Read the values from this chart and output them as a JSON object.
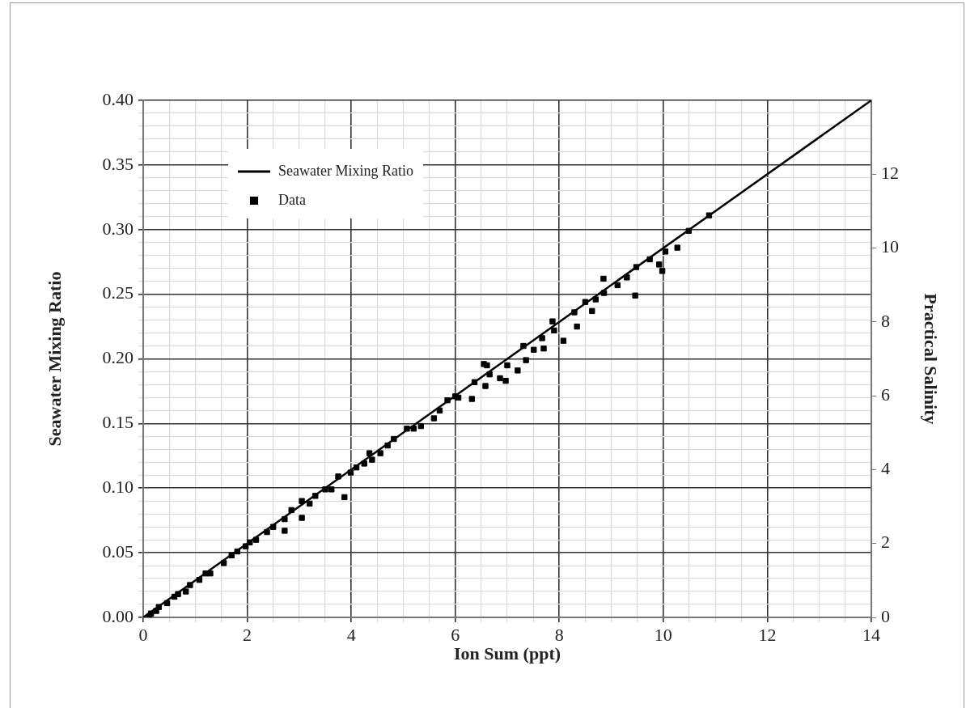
{
  "chart_data": {
    "type": "scatter",
    "xlabel": "Ion Sum (ppt)",
    "ylabel": "Seawater Mixing Ratio",
    "y2label": "Practical Salinity",
    "xlim": [
      0,
      14
    ],
    "ylim": [
      0,
      0.4
    ],
    "y2lim": [
      0,
      14
    ],
    "xticks": [
      0,
      {
        "value": 0.5,
        "label": null
      },
      {
        "value": 1,
        "label": null
      },
      {
        "value": 1.5,
        "label": null
      },
      2,
      {
        "value": 2.5,
        "label": null
      },
      {
        "value": 3,
        "label": null
      },
      {
        "value": 3.5,
        "label": null
      },
      4,
      {
        "value": 4.5,
        "label": null
      },
      {
        "value": 5,
        "label": null
      },
      {
        "value": 5.5,
        "label": null
      },
      6,
      {
        "value": 6.5,
        "label": null
      },
      {
        "value": 7,
        "label": null
      },
      {
        "value": 7.5,
        "label": null
      },
      8,
      {
        "value": 8.5,
        "label": null
      },
      {
        "value": 9,
        "label": null
      },
      {
        "value": 9.5,
        "label": null
      },
      10,
      {
        "value": 10.5,
        "label": null
      },
      {
        "value": 11,
        "label": null
      },
      {
        "value": 11.5,
        "label": null
      },
      12,
      {
        "value": 12.5,
        "label": null
      },
      {
        "value": 13,
        "label": null
      },
      {
        "value": 13.5,
        "label": null
      },
      14
    ],
    "yticks": [
      {
        "value": 0,
        "label": "0.00"
      },
      {
        "value": 0.01,
        "label": null
      },
      {
        "value": 0.02,
        "label": null
      },
      {
        "value": 0.03,
        "label": null
      },
      {
        "value": 0.04,
        "label": null
      },
      {
        "value": 0.05,
        "label": "0.05"
      },
      {
        "value": 0.06,
        "label": null
      },
      {
        "value": 0.07,
        "label": null
      },
      {
        "value": 0.08,
        "label": null
      },
      {
        "value": 0.09,
        "label": null
      },
      {
        "value": 0.1,
        "label": "0.10"
      },
      {
        "value": 0.11,
        "label": null
      },
      {
        "value": 0.12,
        "label": null
      },
      {
        "value": 0.13,
        "label": null
      },
      {
        "value": 0.14,
        "label": null
      },
      {
        "value": 0.15,
        "label": "0.15"
      },
      {
        "value": 0.16,
        "label": null
      },
      {
        "value": 0.17,
        "label": null
      },
      {
        "value": 0.18,
        "label": null
      },
      {
        "value": 0.19,
        "label": null
      },
      {
        "value": 0.2,
        "label": "0.20"
      },
      {
        "value": 0.21,
        "label": null
      },
      {
        "value": 0.22,
        "label": null
      },
      {
        "value": 0.23,
        "label": null
      },
      {
        "value": 0.24,
        "label": null
      },
      {
        "value": 0.25,
        "label": "0.25"
      },
      {
        "value": 0.26,
        "label": null
      },
      {
        "value": 0.27,
        "label": null
      },
      {
        "value": 0.28,
        "label": null
      },
      {
        "value": 0.29,
        "label": null
      },
      {
        "value": 0.3,
        "label": "0.30"
      },
      {
        "value": 0.31,
        "label": null
      },
      {
        "value": 0.32,
        "label": null
      },
      {
        "value": 0.33,
        "label": null
      },
      {
        "value": 0.34,
        "label": null
      },
      {
        "value": 0.35,
        "label": "0.35"
      },
      {
        "value": 0.36,
        "label": null
      },
      {
        "value": 0.37,
        "label": null
      },
      {
        "value": 0.38,
        "label": null
      },
      {
        "value": 0.39,
        "label": null
      },
      {
        "value": 0.4,
        "label": "0.40"
      }
    ],
    "y2ticks": [
      0,
      2,
      4,
      6,
      8,
      10,
      12
    ],
    "grid": true,
    "legend": "top left",
    "series": [
      {
        "name": "Seawater Mixing Ratio",
        "type": "line",
        "color": "#000000",
        "marker": "none",
        "line_style": "solid",
        "x": [
          0,
          14
        ],
        "values": [
          0,
          0.4
        ]
      },
      {
        "name": "Data",
        "color": "#000000",
        "marker": "square",
        "x": [
          0.12,
          0.15,
          0.25,
          0.3,
          0.46,
          0.6,
          0.67,
          0.82,
          0.9,
          1.08,
          1.2,
          1.29,
          1.55,
          1.7,
          1.81,
          1.97,
          2.05,
          2.17,
          2.38,
          2.5,
          2.72,
          2.72,
          2.85,
          3.05,
          3.05,
          3.2,
          3.31,
          3.5,
          3.62,
          3.75,
          3.87,
          3.99,
          4.1,
          4.25,
          4.35,
          4.4,
          4.56,
          4.7,
          4.82,
          5.07,
          5.2,
          5.34,
          5.59,
          5.7,
          5.85,
          6.0,
          6.06,
          6.32,
          6.37,
          6.55,
          6.58,
          6.61,
          6.66,
          6.86,
          6.97,
          7.0,
          7.2,
          7.31,
          7.36,
          7.51,
          7.67,
          7.7,
          7.87,
          7.9,
          8.08,
          8.29,
          8.34,
          8.5,
          8.63,
          8.7,
          8.85,
          8.86,
          9.12,
          9.3,
          9.46,
          9.48,
          9.74,
          9.92,
          9.98,
          10.04,
          10.27,
          10.49,
          10.88
        ],
        "values": [
          0.001,
          0.003,
          0.005,
          0.008,
          0.011,
          0.016,
          0.018,
          0.02,
          0.025,
          0.029,
          0.034,
          0.034,
          0.042,
          0.048,
          0.051,
          0.055,
          0.058,
          0.06,
          0.066,
          0.07,
          0.076,
          0.067,
          0.083,
          0.09,
          0.077,
          0.088,
          0.094,
          0.099,
          0.099,
          0.109,
          0.093,
          0.112,
          0.116,
          0.119,
          0.127,
          0.122,
          0.127,
          0.133,
          0.138,
          0.146,
          0.146,
          0.148,
          0.154,
          0.16,
          0.168,
          0.171,
          0.17,
          0.169,
          0.182,
          0.196,
          0.179,
          0.195,
          0.188,
          0.185,
          0.183,
          0.195,
          0.191,
          0.21,
          0.199,
          0.207,
          0.216,
          0.208,
          0.229,
          0.222,
          0.214,
          0.236,
          0.225,
          0.244,
          0.237,
          0.246,
          0.262,
          0.251,
          0.257,
          0.263,
          0.249,
          0.271,
          0.277,
          0.273,
          0.268,
          0.283,
          0.286,
          0.299,
          0.311
        ]
      }
    ]
  }
}
